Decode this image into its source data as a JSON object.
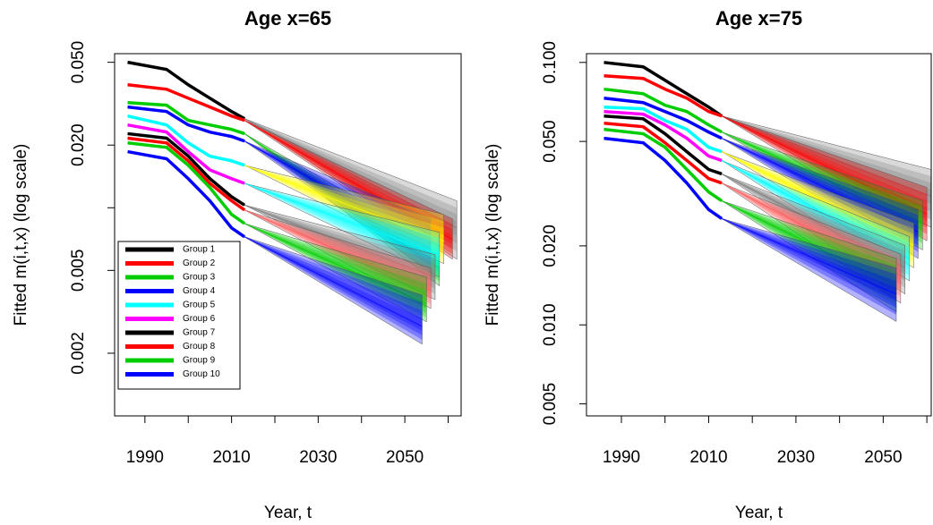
{
  "chart_data": [
    {
      "type": "fan",
      "title": "Age x=65",
      "x_label": "Year, t",
      "y_label": "Fitted m(i,t,x) (log scale)",
      "log_y": true,
      "legend": "bottomleft",
      "xlim": [
        1983,
        2063
      ],
      "xticks": [
        1990,
        {
          "value": 2000,
          "label": null
        },
        2010,
        {
          "value": 2020,
          "label": null
        },
        2030,
        {
          "value": 2040,
          "label": null
        },
        2050,
        {
          "value": 2060,
          "label": null
        }
      ],
      "ylim": [
        0.001,
        0.055
      ],
      "yticks": [
        {
          "value": 0.05,
          "label": "0.050"
        },
        {
          "value": 0.02,
          "label": "0.020"
        },
        {
          "value": 0.01,
          "label": null
        },
        {
          "value": 0.005,
          "label": "0.005"
        },
        {
          "value": 0.002,
          "label": "0.002"
        }
      ],
      "series": [
        {
          "name": "Group 1",
          "color": "#000000",
          "fan_color": "#808080",
          "x": [
            1986,
            1995,
            2000,
            2005,
            2010,
            2013,
            2062
          ],
          "values": [
            0.05,
            0.0462,
            0.039,
            0.0336,
            0.029,
            0.0268,
            0.008
          ],
          "lower": [
            null,
            null,
            null,
            null,
            null,
            0.0268,
            0.00566
          ],
          "upper": [
            null,
            null,
            null,
            null,
            null,
            0.0268,
            0.0108
          ]
        },
        {
          "name": "Group 2",
          "color": "#ff0000",
          "fan_color": "#ff0000",
          "x": [
            1986,
            1995,
            2000,
            2005,
            2010,
            2013,
            2061
          ],
          "values": [
            0.039,
            0.0371,
            0.0336,
            0.0305,
            0.0276,
            0.0263,
            0.00703
          ],
          "lower": [
            null,
            null,
            null,
            null,
            null,
            0.0263,
            0.00566
          ],
          "upper": [
            null,
            null,
            null,
            null,
            null,
            0.0263,
            0.00884
          ]
        },
        {
          "name": "Group 3",
          "color": "#00cd00",
          "fan_color": "#00cd00",
          "x": [
            1986,
            1995,
            2000,
            2005,
            2010,
            2013,
            2058
          ],
          "values": [
            0.032,
            0.0311,
            0.0263,
            0.025,
            0.0238,
            0.0227,
            0.00513
          ],
          "lower": [
            null,
            null,
            null,
            null,
            null,
            0.0227,
            0.00421
          ],
          "upper": [
            null,
            null,
            null,
            null,
            null,
            0.0227,
            0.00657
          ]
        },
        {
          "name": "Group 4",
          "color": "#0000ff",
          "fan_color": "#0000ff",
          "x": [
            1986,
            1995,
            2000,
            2005,
            2010,
            2013,
            2056
          ],
          "values": [
            0.0305,
            0.029,
            0.025,
            0.0231,
            0.022,
            0.0209,
            0.00657
          ],
          "lower": [
            null,
            null,
            null,
            null,
            null,
            0.0209,
            0.00488
          ],
          "upper": [
            null,
            null,
            null,
            null,
            null,
            0.0209,
            0.00884
          ]
        },
        {
          "name": "Group 5",
          "color": "#00ffff",
          "fan_color": "#ffff00",
          "x": [
            1986,
            1995,
            2000,
            2005,
            2010,
            2013,
            2059
          ],
          "values": [
            0.0276,
            0.025,
            0.0205,
            0.0177,
            0.0168,
            0.016,
            0.0069
          ],
          "lower": [
            null,
            null,
            null,
            null,
            null,
            0.016,
            0.00539
          ],
          "upper": [
            null,
            null,
            null,
            null,
            null,
            0.016,
            0.00929
          ]
        },
        {
          "name": "Group 6",
          "color": "#ff00ff",
          "fan_color": "#00ffff",
          "x": [
            1986,
            1995,
            2000,
            2005,
            2010,
            2013,
            2058
          ],
          "values": [
            0.025,
            0.0231,
            0.0186,
            0.0152,
            0.0138,
            0.0131,
            0.00595
          ],
          "lower": [
            null,
            null,
            null,
            null,
            null,
            0.0131,
            0.00464
          ],
          "upper": [
            null,
            null,
            null,
            null,
            null,
            0.0131,
            0.00762
          ]
        },
        {
          "name": "Group 7",
          "color": "#000000",
          "fan_color": "#808080",
          "x": [
            1986,
            1995,
            2000,
            2005,
            2010,
            2013,
            2057
          ],
          "values": [
            0.0227,
            0.0216,
            0.0177,
            0.0138,
            0.0113,
            0.0103,
            0.00464
          ],
          "lower": [
            null,
            null,
            null,
            null,
            null,
            0.0103,
            0.00362
          ],
          "upper": [
            null,
            null,
            null,
            null,
            null,
            0.0103,
            0.00595
          ]
        },
        {
          "name": "Group 8",
          "color": "#ff0000",
          "fan_color": "#ff6060",
          "x": [
            1986,
            1995,
            2000,
            2005,
            2010,
            2013,
            2056
          ],
          "values": [
            0.0216,
            0.0205,
            0.0168,
            0.0131,
            0.0108,
            0.00975,
            0.004
          ],
          "lower": [
            null,
            null,
            null,
            null,
            null,
            0.00975,
            0.00328
          ],
          "upper": [
            null,
            null,
            null,
            null,
            null,
            0.00975,
            0.00513
          ]
        },
        {
          "name": "Group 9",
          "color": "#00cd00",
          "fan_color": "#00cd00",
          "x": [
            1986,
            1995,
            2000,
            2005,
            2010,
            2013,
            2055
          ],
          "values": [
            0.0205,
            0.0195,
            0.016,
            0.0125,
            0.00929,
            0.0084,
            0.00345
          ],
          "lower": [
            null,
            null,
            null,
            null,
            null,
            0.0084,
            0.00283
          ],
          "upper": [
            null,
            null,
            null,
            null,
            null,
            0.0084,
            0.00464
          ]
        },
        {
          "name": "Group 10",
          "color": "#0000ff",
          "fan_color": "#0000ff",
          "x": [
            1986,
            1995,
            2000,
            2005,
            2010,
            2013,
            2054
          ],
          "values": [
            0.0186,
            0.0172,
            0.0138,
            0.0108,
            0.008,
            0.00725,
            0.00269
          ],
          "lower": [
            null,
            null,
            null,
            null,
            null,
            0.00725,
            0.00221
          ],
          "upper": [
            null,
            null,
            null,
            null,
            null,
            0.00725,
            0.00381
          ]
        }
      ]
    },
    {
      "type": "fan",
      "title": "Age x=75",
      "x_label": "Year, t",
      "y_label": "Fitted m(i,t,x) (log scale)",
      "log_y": true,
      "xlim": [
        1982,
        2061
      ],
      "xticks": [
        1990,
        {
          "value": 2000,
          "label": null
        },
        2010,
        {
          "value": 2020,
          "label": null
        },
        2030,
        {
          "value": 2040,
          "label": null
        },
        2050,
        {
          "value": 2060,
          "label": null
        }
      ],
      "ylim": [
        0.0045,
        0.108
      ],
      "yticks": [
        {
          "value": 0.1,
          "label": "0.100"
        },
        {
          "value": 0.05,
          "label": "0.050"
        },
        {
          "value": 0.02,
          "label": "0.020"
        },
        {
          "value": 0.01,
          "label": "0.010"
        },
        {
          "value": 0.005,
          "label": "0.005"
        }
      ],
      "series": [
        {
          "color": "#000000",
          "fan_color": "#808080",
          "x": [
            1986,
            1995,
            2000,
            2005,
            2010,
            2013,
            2061
          ],
          "values": [
            0.1,
            0.0962,
            0.0855,
            0.076,
            0.0676,
            0.0625,
            0.0309
          ],
          "lower": [
            null,
            null,
            null,
            null,
            null,
            0.0625,
            0.0235
          ],
          "upper": [
            null,
            null,
            null,
            null,
            null,
            0.0625,
            0.0391
          ]
        },
        {
          "color": "#ff0000",
          "fan_color": "#ff0000",
          "x": [
            1986,
            1995,
            2000,
            2005,
            2010,
            2013,
            2060
          ],
          "values": [
            0.0889,
            0.0869,
            0.0791,
            0.0731,
            0.065,
            0.0625,
            0.0264
          ],
          "lower": [
            null,
            null,
            null,
            null,
            null,
            0.0625,
            0.0209
          ],
          "upper": [
            null,
            null,
            null,
            null,
            null,
            0.0625,
            0.0334
          ]
        },
        {
          "color": "#00cd00",
          "fan_color": "#00cd00",
          "x": [
            1986,
            1995,
            2000,
            2005,
            2010,
            2013,
            2059
          ],
          "values": [
            0.0791,
            0.076,
            0.0687,
            0.065,
            0.0578,
            0.0543,
            0.0244
          ],
          "lower": [
            null,
            null,
            null,
            null,
            null,
            0.0543,
            0.0193
          ],
          "upper": [
            null,
            null,
            null,
            null,
            null,
            0.0543,
            0.0297
          ]
        },
        {
          "color": "#0000ff",
          "fan_color": "#0000ff",
          "x": [
            1986,
            1995,
            2000,
            2005,
            2010,
            2013,
            2058
          ],
          "values": [
            0.0731,
            0.0703,
            0.065,
            0.0601,
            0.0543,
            0.0514,
            0.0226
          ],
          "lower": [
            null,
            null,
            null,
            null,
            null,
            0.0514,
            0.0179
          ],
          "upper": [
            null,
            null,
            null,
            null,
            null,
            0.0514,
            0.0275
          ]
        },
        {
          "color": "#00ffff",
          "fan_color": "#ffff00",
          "x": [
            1986,
            1995,
            2000,
            2005,
            2010,
            2013,
            2057
          ],
          "values": [
            0.0676,
            0.0666,
            0.0601,
            0.0556,
            0.0475,
            0.0457,
            0.0201
          ],
          "lower": [
            null,
            null,
            null,
            null,
            null,
            0.0457,
            0.0165
          ],
          "upper": [
            null,
            null,
            null,
            null,
            null,
            0.0457,
            0.0244
          ]
        },
        {
          "color": "#ff00ff",
          "fan_color": "#00ffff",
          "x": [
            1986,
            1995,
            2000,
            2005,
            2010,
            2013,
            2056
          ],
          "values": [
            0.065,
            0.0635,
            0.0578,
            0.0514,
            0.044,
            0.0423,
            0.0179
          ],
          "lower": [
            null,
            null,
            null,
            null,
            null,
            0.0423,
            0.0147
          ],
          "upper": [
            null,
            null,
            null,
            null,
            null,
            0.0423,
            0.0217
          ]
        },
        {
          "color": "#000000",
          "fan_color": "#808080",
          "x": [
            1986,
            1995,
            2000,
            2005,
            2010,
            2013,
            2055
          ],
          "values": [
            0.0625,
            0.061,
            0.0535,
            0.0457,
            0.0391,
            0.0376,
            0.0165
          ],
          "lower": [
            null,
            null,
            null,
            null,
            null,
            0.0376,
            0.0131
          ],
          "upper": [
            null,
            null,
            null,
            null,
            null,
            0.0376,
            0.0201
          ]
        },
        {
          "color": "#ff0000",
          "fan_color": "#ff6060",
          "x": [
            1986,
            1995,
            2000,
            2005,
            2010,
            2013,
            2054
          ],
          "values": [
            0.0587,
            0.0569,
            0.0494,
            0.0423,
            0.0361,
            0.0347,
            0.0153
          ],
          "lower": [
            null,
            null,
            null,
            null,
            null,
            0.0347,
            0.0121
          ],
          "upper": [
            null,
            null,
            null,
            null,
            null,
            0.0347,
            0.0186
          ]
        },
        {
          "color": "#00cd00",
          "fan_color": "#00cd00",
          "x": [
            1986,
            1995,
            2000,
            2005,
            2010,
            2013,
            2053
          ],
          "values": [
            0.0556,
            0.0535,
            0.0475,
            0.0391,
            0.0321,
            0.0297,
            0.0141
          ],
          "lower": [
            null,
            null,
            null,
            null,
            null,
            0.0297,
            0.0112
          ],
          "upper": [
            null,
            null,
            null,
            null,
            null,
            0.0297,
            0.0179
          ]
        },
        {
          "color": "#0000ff",
          "fan_color": "#0000ff",
          "x": [
            1986,
            1995,
            2000,
            2005,
            2010,
            2013,
            2053
          ],
          "values": [
            0.0514,
            0.0494,
            0.0423,
            0.0347,
            0.0275,
            0.0254,
            0.0131
          ],
          "lower": [
            null,
            null,
            null,
            null,
            null,
            0.0254,
            0.0103
          ],
          "upper": [
            null,
            null,
            null,
            null,
            null,
            0.0254,
            0.0165
          ]
        }
      ]
    }
  ]
}
